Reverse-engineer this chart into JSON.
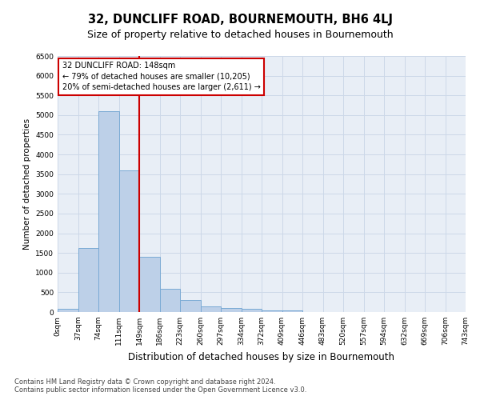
{
  "title": "32, DUNCLIFF ROAD, BOURNEMOUTH, BH6 4LJ",
  "subtitle": "Size of property relative to detached houses in Bournemouth",
  "xlabel": "Distribution of detached houses by size in Bournemouth",
  "ylabel": "Number of detached properties",
  "footnote1": "Contains HM Land Registry data © Crown copyright and database right 2024.",
  "footnote2": "Contains public sector information licensed under the Open Government Licence v3.0.",
  "bin_edges": [
    0,
    37,
    74,
    111,
    148,
    185,
    222,
    259,
    296,
    333,
    370,
    407,
    444,
    481,
    518,
    555,
    592,
    629,
    666,
    703,
    740
  ],
  "bar_values": [
    75,
    1620,
    5100,
    3600,
    1400,
    580,
    300,
    150,
    100,
    75,
    50,
    50,
    0,
    0,
    0,
    0,
    0,
    0,
    0,
    0
  ],
  "bar_color": "#bdd0e8",
  "bar_edge_color": "#7aaad4",
  "property_line_x": 148,
  "annotation_line1": "32 DUNCLIFF ROAD: 148sqm",
  "annotation_line2": "← 79% of detached houses are smaller (10,205)",
  "annotation_line3": "20% of semi-detached houses are larger (2,611) →",
  "annotation_box_color": "#cc0000",
  "ylim": [
    0,
    6500
  ],
  "yticks": [
    0,
    500,
    1000,
    1500,
    2000,
    2500,
    3000,
    3500,
    4000,
    4500,
    5000,
    5500,
    6000,
    6500
  ],
  "xtick_labels": [
    "0sqm",
    "37sqm",
    "74sqm",
    "111sqm",
    "149sqm",
    "186sqm",
    "223sqm",
    "260sqm",
    "297sqm",
    "334sqm",
    "372sqm",
    "409sqm",
    "446sqm",
    "483sqm",
    "520sqm",
    "557sqm",
    "594sqm",
    "632sqm",
    "669sqm",
    "706sqm",
    "743sqm"
  ],
  "grid_color": "#ccd8e8",
  "background_color": "#e8eef6",
  "title_fontsize": 10.5,
  "subtitle_fontsize": 9,
  "xlabel_fontsize": 8.5,
  "ylabel_fontsize": 7.5,
  "tick_fontsize": 6.5,
  "annotation_fontsize": 7,
  "footnote_fontsize": 6
}
